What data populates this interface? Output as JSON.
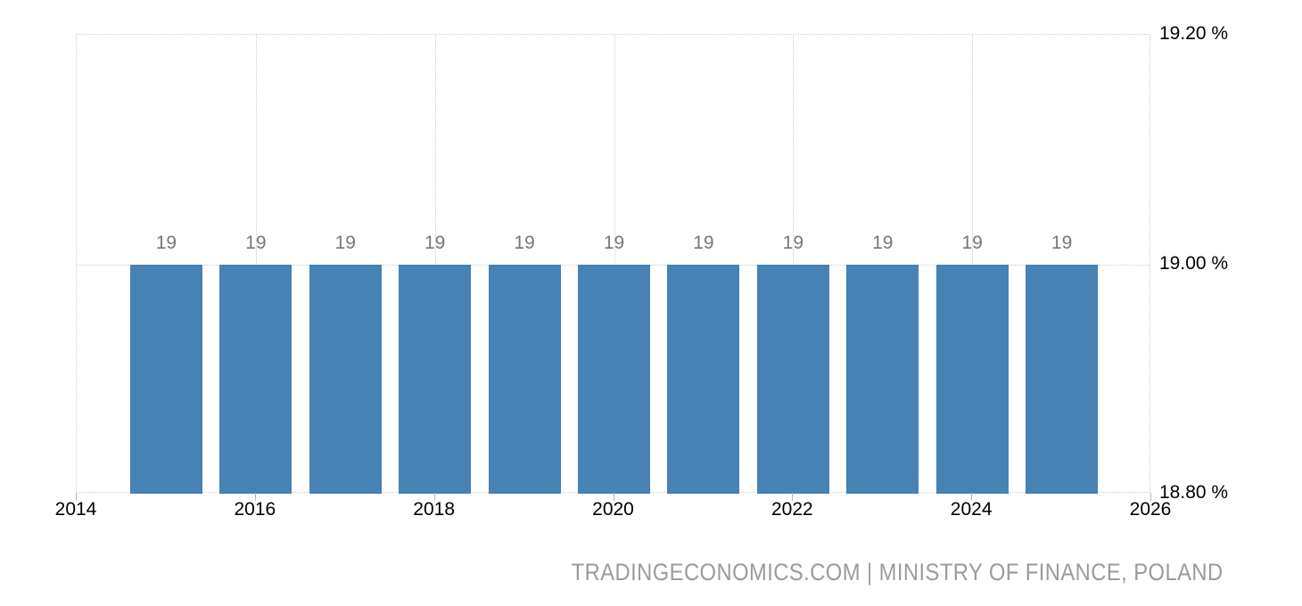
{
  "chart_data": {
    "type": "bar",
    "title": "",
    "x": [
      2015,
      2016,
      2017,
      2018,
      2019,
      2020,
      2021,
      2022,
      2023,
      2024,
      2025
    ],
    "values": [
      19,
      19,
      19,
      19,
      19,
      19,
      19,
      19,
      19,
      19,
      19
    ],
    "bar_value_labels": [
      "19",
      "19",
      "19",
      "19",
      "19",
      "19",
      "19",
      "19",
      "19",
      "19",
      "19"
    ],
    "x_tick_labels": [
      "2014",
      "2016",
      "2018",
      "2020",
      "2022",
      "2024",
      "2026"
    ],
    "y_tick_labels": [
      "19.20 %",
      "19.00 %",
      "18.80 %"
    ],
    "xlim": [
      2014,
      2026
    ],
    "ylim": [
      18.8,
      19.2
    ],
    "grid": true,
    "legend": "none",
    "attribution": "TRADINGECONOMICS.COM | MINISTRY OF FINANCE, POLAND",
    "colors": {
      "bar": "#4682b4",
      "value_label": "#777777",
      "axis_text": "#000000",
      "gridline": "#cccccc",
      "attribution_text": "#9b9b9b",
      "background": "#ffffff"
    }
  }
}
